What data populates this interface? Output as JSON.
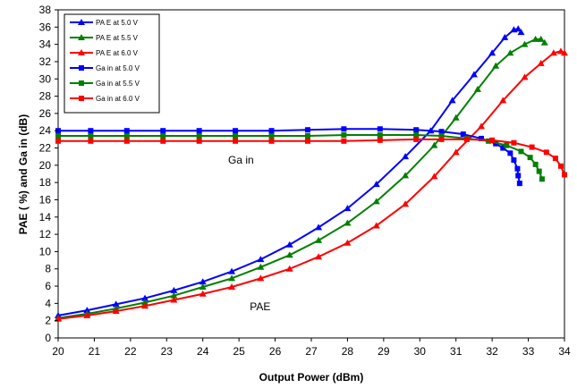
{
  "chart_data": {
    "type": "line",
    "title": "",
    "xlabel": "Output Power (dBm)",
    "ylabel": "PAE ( %) and Ga in (dB)",
    "xlim": [
      20,
      34
    ],
    "ylim": [
      0,
      38
    ],
    "xticks": [
      20,
      21,
      22,
      23,
      24,
      25,
      26,
      27,
      28,
      29,
      30,
      31,
      32,
      33,
      34
    ],
    "yticks": [
      0,
      2,
      4,
      6,
      8,
      10,
      12,
      14,
      16,
      18,
      20,
      22,
      24,
      26,
      28,
      30,
      32,
      34,
      36,
      38
    ],
    "grid": false,
    "legend_position": "top-left",
    "annotations": [
      {
        "text": "Ga in",
        "x": 24.7,
        "y": 20.2
      },
      {
        "text": "PAE",
        "x": 25.3,
        "y": 3.2
      }
    ],
    "series": [
      {
        "name": "PA E at  5.0 V",
        "color": "#0000ff",
        "marker": "triangle",
        "x": [
          20,
          20.8,
          21.6,
          22.4,
          23.2,
          24.0,
          24.8,
          25.6,
          26.4,
          27.2,
          28.0,
          28.8,
          29.6,
          30.3,
          30.9,
          31.5,
          32.0,
          32.35,
          32.6,
          32.72,
          32.8
        ],
        "y": [
          2.6,
          3.2,
          3.9,
          4.6,
          5.5,
          6.5,
          7.7,
          9.1,
          10.8,
          12.8,
          15.0,
          17.8,
          21.0,
          24.0,
          27.5,
          30.5,
          33.0,
          34.8,
          35.7,
          35.8,
          35.4
        ]
      },
      {
        "name": "PA E at  5.5 V",
        "color": "#008000",
        "marker": "triangle",
        "x": [
          20,
          20.8,
          21.6,
          22.4,
          23.2,
          24.0,
          24.8,
          25.6,
          26.4,
          27.2,
          28.0,
          28.8,
          29.6,
          30.4,
          31.0,
          31.6,
          32.1,
          32.5,
          32.9,
          33.2,
          33.35,
          33.45
        ],
        "y": [
          2.3,
          2.8,
          3.4,
          4.1,
          4.9,
          5.9,
          6.9,
          8.2,
          9.6,
          11.3,
          13.3,
          15.8,
          18.8,
          22.3,
          25.5,
          28.8,
          31.5,
          33.0,
          34.0,
          34.6,
          34.6,
          34.2
        ]
      },
      {
        "name": "PA E at  6.0 V",
        "color": "#ff0000",
        "marker": "triangle",
        "x": [
          20,
          20.8,
          21.6,
          22.4,
          23.2,
          24.0,
          24.8,
          25.6,
          26.4,
          27.2,
          28.0,
          28.8,
          29.6,
          30.4,
          31.0,
          31.7,
          32.3,
          32.9,
          33.35,
          33.7,
          33.9,
          34.0
        ],
        "y": [
          2.2,
          2.6,
          3.1,
          3.7,
          4.4,
          5.1,
          5.9,
          6.9,
          8.0,
          9.4,
          11.0,
          13.0,
          15.5,
          18.7,
          21.5,
          24.5,
          27.5,
          30.2,
          31.8,
          33.0,
          33.2,
          33.0
        ]
      },
      {
        "name": "Ga in at 5.0 V",
        "color": "#0000ff",
        "marker": "square",
        "x": [
          20,
          20.9,
          21.9,
          22.9,
          23.9,
          24.9,
          25.9,
          26.9,
          27.9,
          28.9,
          29.9,
          30.6,
          31.2,
          31.7,
          32.1,
          32.3,
          32.5,
          32.6,
          32.7,
          32.72,
          32.76
        ],
        "y": [
          24.0,
          24.0,
          24.0,
          24.0,
          24.0,
          24.0,
          24.0,
          24.1,
          24.2,
          24.2,
          24.1,
          23.9,
          23.6,
          23.1,
          22.5,
          22.0,
          21.4,
          20.6,
          19.6,
          18.8,
          17.9
        ]
      },
      {
        "name": "Ga in at 5.5 V",
        "color": "#008000",
        "marker": "square",
        "x": [
          20,
          20.9,
          21.9,
          22.9,
          23.9,
          24.9,
          25.9,
          26.9,
          27.9,
          28.9,
          29.9,
          30.6,
          31.3,
          31.9,
          32.4,
          32.8,
          33.05,
          33.2,
          33.3,
          33.38
        ],
        "y": [
          23.4,
          23.4,
          23.4,
          23.4,
          23.4,
          23.4,
          23.4,
          23.4,
          23.5,
          23.5,
          23.5,
          23.4,
          23.1,
          22.8,
          22.3,
          21.6,
          20.9,
          20.1,
          19.3,
          18.4
        ]
      },
      {
        "name": "Ga in at 6.0 V",
        "color": "#ff0000",
        "marker": "square",
        "x": [
          20,
          20.9,
          21.9,
          22.9,
          23.9,
          24.9,
          25.9,
          26.9,
          27.9,
          28.9,
          29.9,
          30.6,
          31.3,
          32.0,
          32.6,
          33.1,
          33.5,
          33.75,
          33.9,
          34.0
        ],
        "y": [
          22.8,
          22.8,
          22.8,
          22.8,
          22.8,
          22.8,
          22.8,
          22.8,
          22.8,
          22.9,
          23.0,
          23.0,
          23.0,
          22.9,
          22.6,
          22.1,
          21.5,
          20.8,
          19.9,
          18.9
        ]
      }
    ]
  }
}
